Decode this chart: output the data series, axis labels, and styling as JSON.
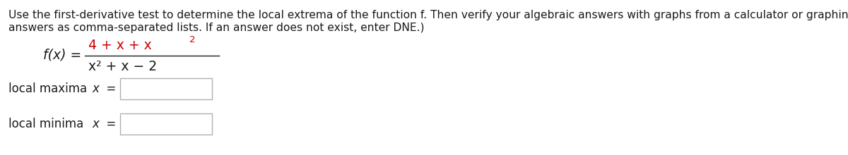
{
  "instruction_line1": "Use the first-derivative test to determine the local extrema of the function f. Then verify your algebraic answers with graphs from a calculator or graphing utility. (Enter your",
  "instruction_line2": "answers as comma-separated lists. If an answer does not exist, enter DNE.)",
  "numerator_text": "4 + x + x",
  "numerator_sup": "2",
  "denominator_text": "x² + x − 2",
  "func_prefix": "f(x) =",
  "label_maxima": "local maxima",
  "label_minima": "local minima",
  "x_equals": "x  =",
  "background_color": "#ffffff",
  "text_color": "#1a1a1a",
  "red_color": "#cc0000",
  "box_edge_color": "#b0b0b0",
  "box_fill_color": "#ffffff",
  "font_size_instruction": 11.2,
  "font_size_func": 13.5,
  "font_size_labels": 12.0,
  "font_size_sup": 9.5
}
